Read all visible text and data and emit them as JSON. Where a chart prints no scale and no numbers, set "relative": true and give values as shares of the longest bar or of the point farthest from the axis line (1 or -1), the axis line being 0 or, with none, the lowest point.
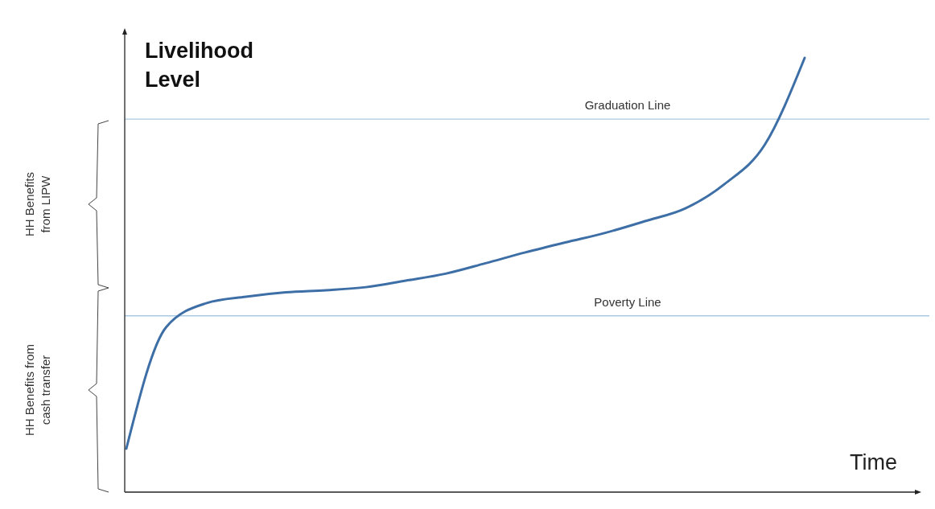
{
  "chart_data": {
    "type": "line",
    "relative": true,
    "ylabel": "Livelihood Level",
    "xlabel": "Time",
    "categories": [
      null,
      null,
      null,
      null,
      null,
      null,
      null,
      null,
      null,
      null,
      null,
      null,
      null,
      null,
      null,
      null,
      null,
      null
    ],
    "series": [
      {
        "color": "#3d6fa6",
        "values": [
          0.1,
          0.38,
          0.435,
          0.45,
          0.46,
          0.465,
          0.472,
          0.487,
          0.503,
          0.527,
          0.552,
          0.575,
          0.597,
          0.624,
          0.653,
          0.71,
          0.8,
          1.0
        ]
      }
    ],
    "ref_lines": [
      {
        "axis": "y",
        "value": 0.859,
        "label": "Graduation Line",
        "color": "#a9c9e2"
      },
      {
        "axis": "y",
        "value": 0.406,
        "label": "Poverty Line",
        "color": "#a9c9e2"
      }
    ],
    "annotations": [
      "HH Benefits from LIPW",
      "HH Benefits from cash transfer"
    ]
  }
}
